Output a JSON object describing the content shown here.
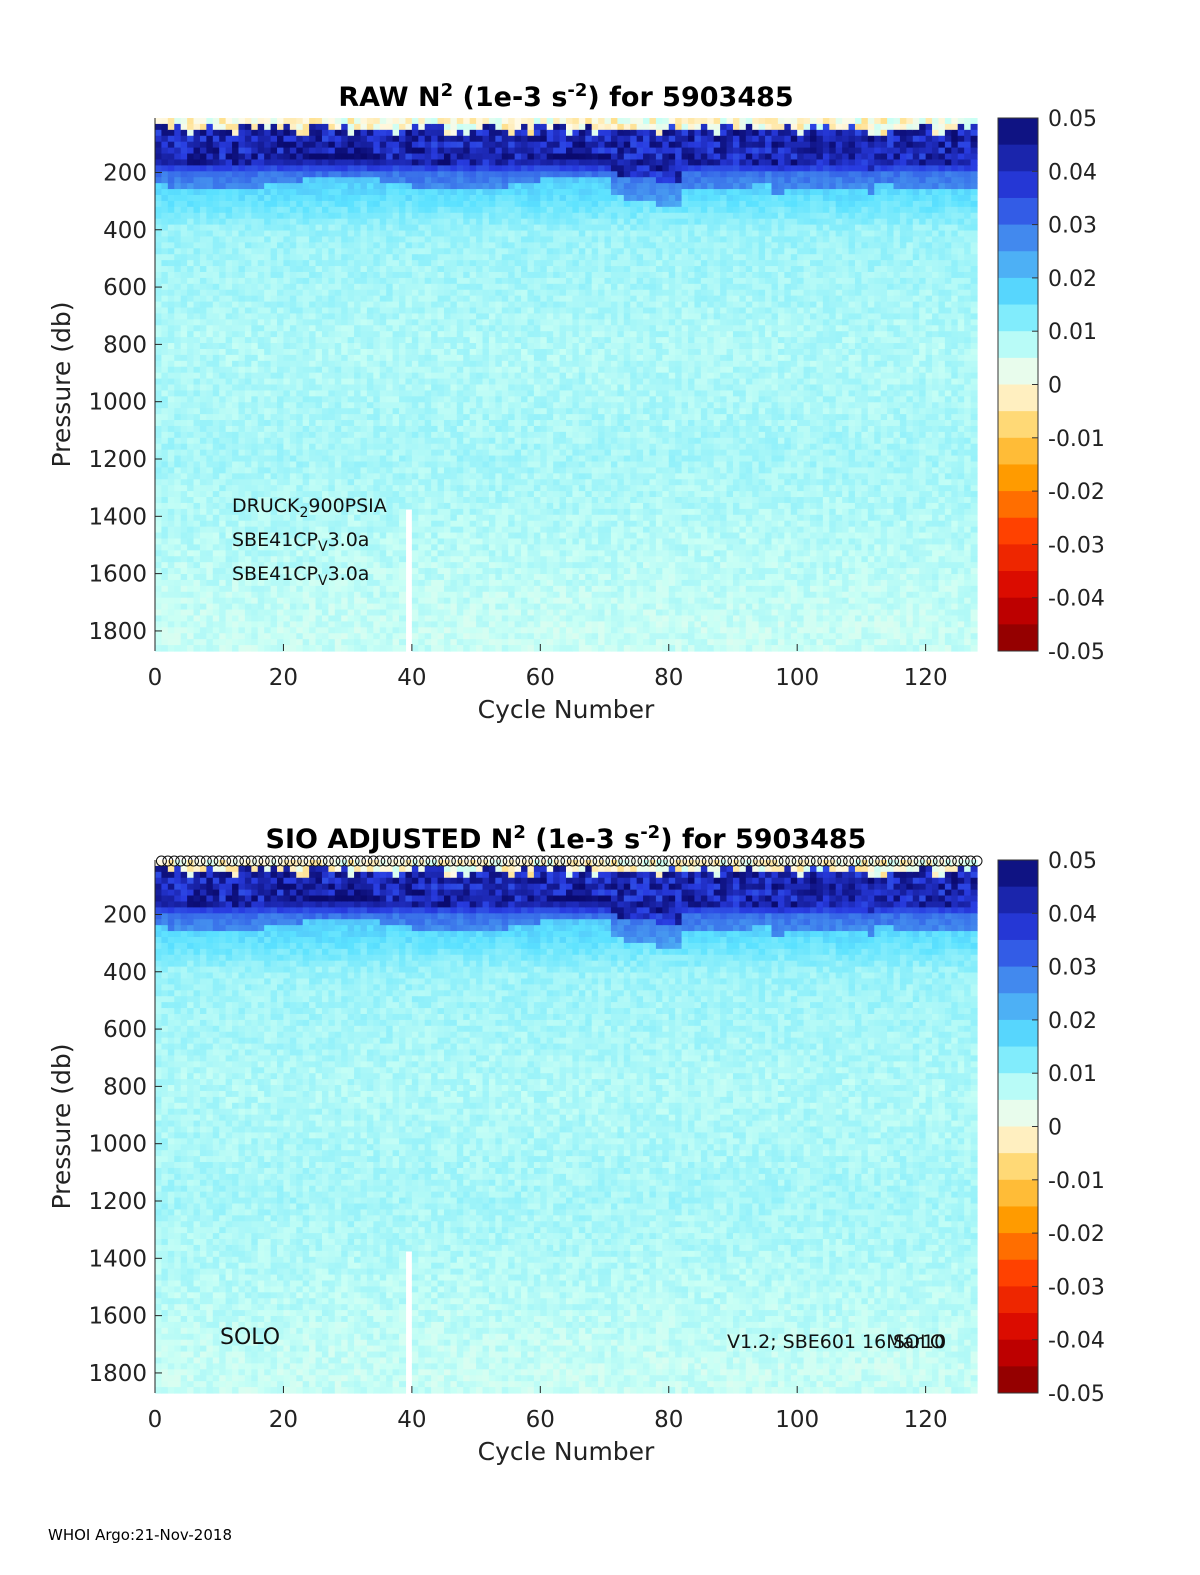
{
  "footer": "WHOI Argo:21-Nov-2018",
  "chart_data": [
    {
      "type": "heatmap",
      "title_parts": {
        "pre": "RAW N",
        "sup1": "2",
        "mid": " (1e-3 s",
        "sup2": "-2",
        "post": ") for 5903485"
      },
      "xlabel": "Cycle Number",
      "ylabel": "Pressure (db)",
      "xlim": [
        0,
        128
      ],
      "ylim": [
        1870,
        10
      ],
      "xticks": [
        0,
        20,
        40,
        60,
        80,
        100,
        120
      ],
      "yticks": [
        200,
        400,
        600,
        800,
        1000,
        1200,
        1400,
        1600,
        1800
      ],
      "colorbar": {
        "min": -0.05,
        "max": 0.05,
        "ticks": [
          "0.05",
          "0.04",
          "0.03",
          "0.02",
          "0.01",
          "0",
          "-0.01",
          "-0.02",
          "-0.03",
          "-0.04",
          "-0.05"
        ]
      },
      "missing_cycles": [
        39
      ],
      "missing_below_pressure": 1380,
      "annotations": {
        "line1": {
          "main": "DRUCK",
          "sub": "2",
          "rest": "900PSIA"
        },
        "line2": {
          "main": "SBE41CP",
          "sub": "V",
          "rest": "3.0a"
        },
        "line3": {
          "main": "SBE41CP",
          "sub": "V",
          "rest": "3.0a"
        }
      },
      "profile_summary": [
        {
          "pressure": 50,
          "n2": 0.005
        },
        {
          "pressure": 130,
          "n2": 0.045
        },
        {
          "pressure": 200,
          "n2": 0.02
        },
        {
          "pressure": 400,
          "n2": 0.01
        },
        {
          "pressure": 800,
          "n2": 0.008
        },
        {
          "pressure": 1200,
          "n2": 0.009
        },
        {
          "pressure": 1800,
          "n2": 0.006
        }
      ]
    },
    {
      "type": "heatmap",
      "title_parts": {
        "pre": "SIO  ADJUSTED N",
        "sup1": "2",
        "mid": " (1e-3 s",
        "sup2": "-2",
        "post": ") for 5903485"
      },
      "xlabel": "Cycle Number",
      "ylabel": "Pressure (db)",
      "xlim": [
        0,
        128
      ],
      "ylim": [
        1870,
        10
      ],
      "xticks": [
        0,
        20,
        40,
        60,
        80,
        100,
        120
      ],
      "yticks": [
        200,
        400,
        600,
        800,
        1000,
        1200,
        1400,
        1600,
        1800
      ],
      "colorbar": {
        "min": -0.05,
        "max": 0.05,
        "ticks": [
          "0.05",
          "0.04",
          "0.03",
          "0.02",
          "0.01",
          "0",
          "-0.01",
          "-0.02",
          "-0.03",
          "-0.04",
          "-0.05"
        ]
      },
      "missing_cycles": [
        39
      ],
      "missing_below_pressure": 1380,
      "qc_markers": "o",
      "annotations": {
        "left": "SOLO",
        "right_a": "V1.2; SBE601 16Mar10",
        "right_b": "SOLO"
      },
      "profile_summary": [
        {
          "pressure": 50,
          "n2": 0.005
        },
        {
          "pressure": 130,
          "n2": 0.045
        },
        {
          "pressure": 200,
          "n2": 0.02
        },
        {
          "pressure": 400,
          "n2": 0.01
        },
        {
          "pressure": 800,
          "n2": 0.008
        },
        {
          "pressure": 1200,
          "n2": 0.009
        },
        {
          "pressure": 1800,
          "n2": 0.006
        }
      ]
    }
  ]
}
